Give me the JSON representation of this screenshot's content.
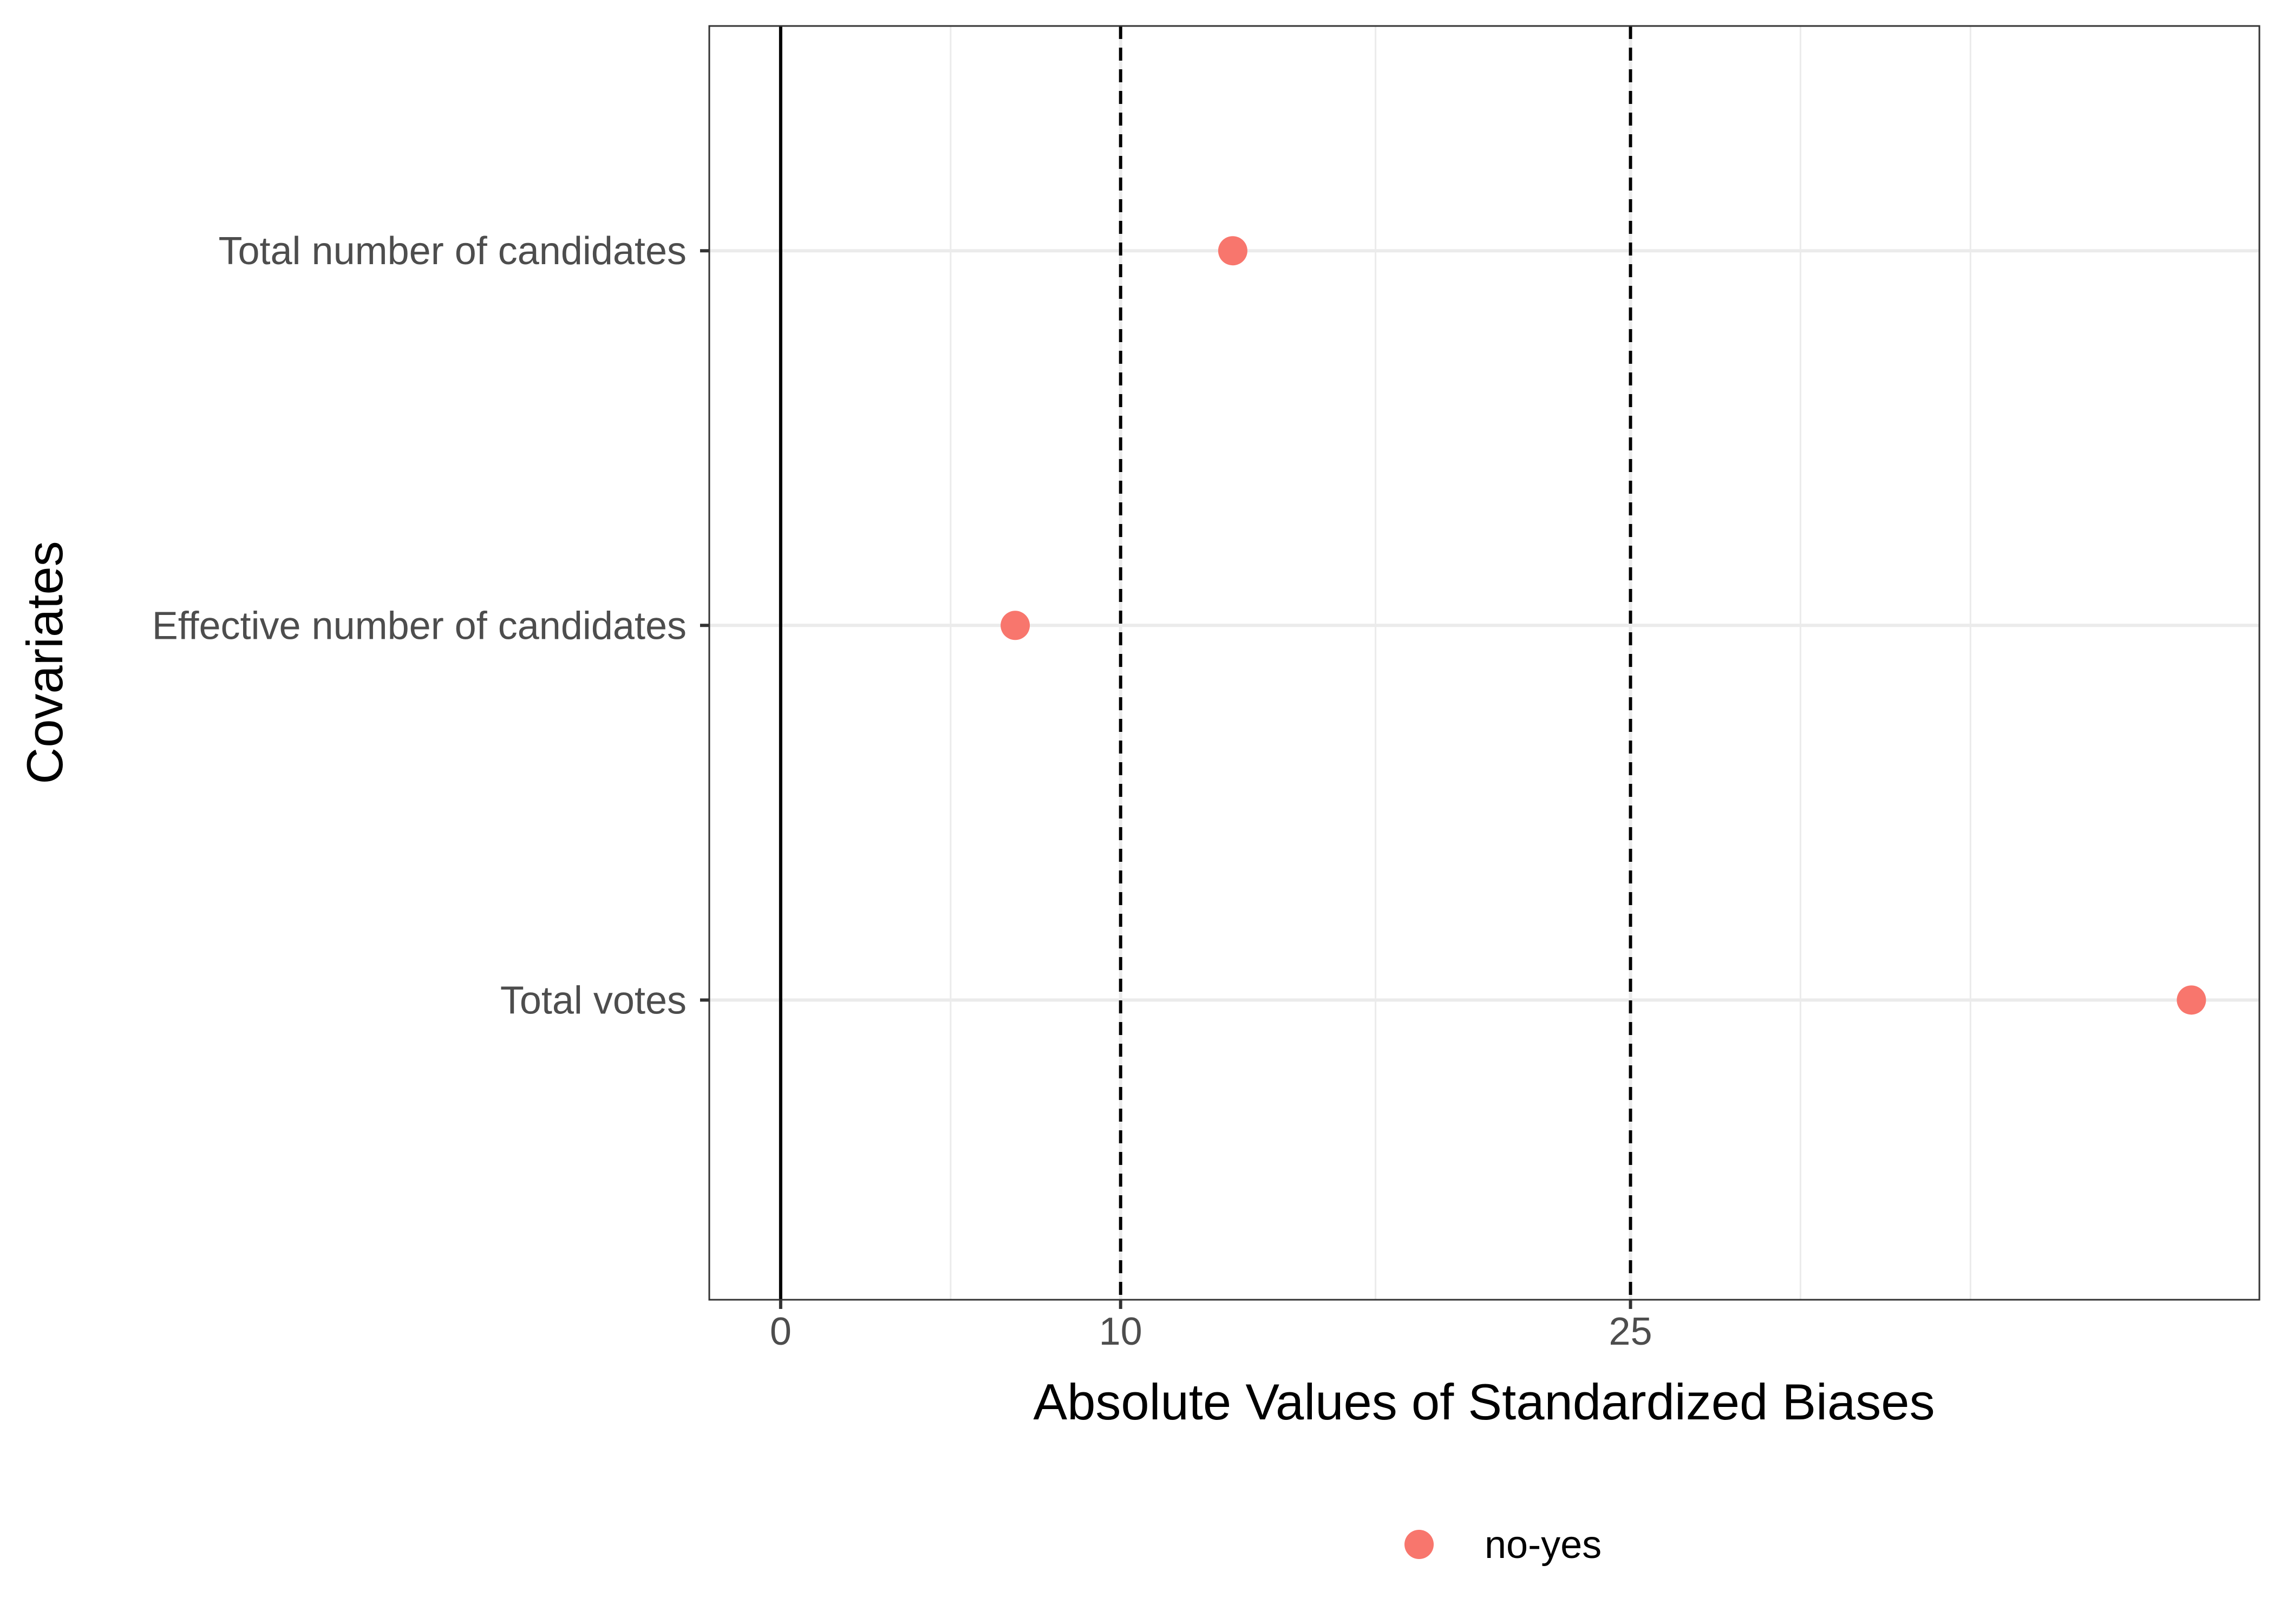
{
  "chart_data": {
    "type": "scatter",
    "title": "",
    "xlabel": "Absolute Values of Standardized Biases",
    "ylabel": "Covariates",
    "xlim": [
      -2.1,
      43.5
    ],
    "x_ticks": [
      0,
      10,
      25
    ],
    "x_minor_gridlines": [
      5,
      17.5,
      30,
      35
    ],
    "reference_lines": {
      "solid": [
        0
      ],
      "dashed": [
        10,
        25
      ]
    },
    "categories": [
      "Total number of candidates",
      "Effective number of candidates",
      "Total votes"
    ],
    "series": [
      {
        "name": "no-yes",
        "color": "#F8766D",
        "values": [
          13.3,
          6.9,
          41.5
        ]
      }
    ],
    "legend": {
      "position": "bottom",
      "entries": [
        "no-yes"
      ]
    },
    "grid": true
  }
}
